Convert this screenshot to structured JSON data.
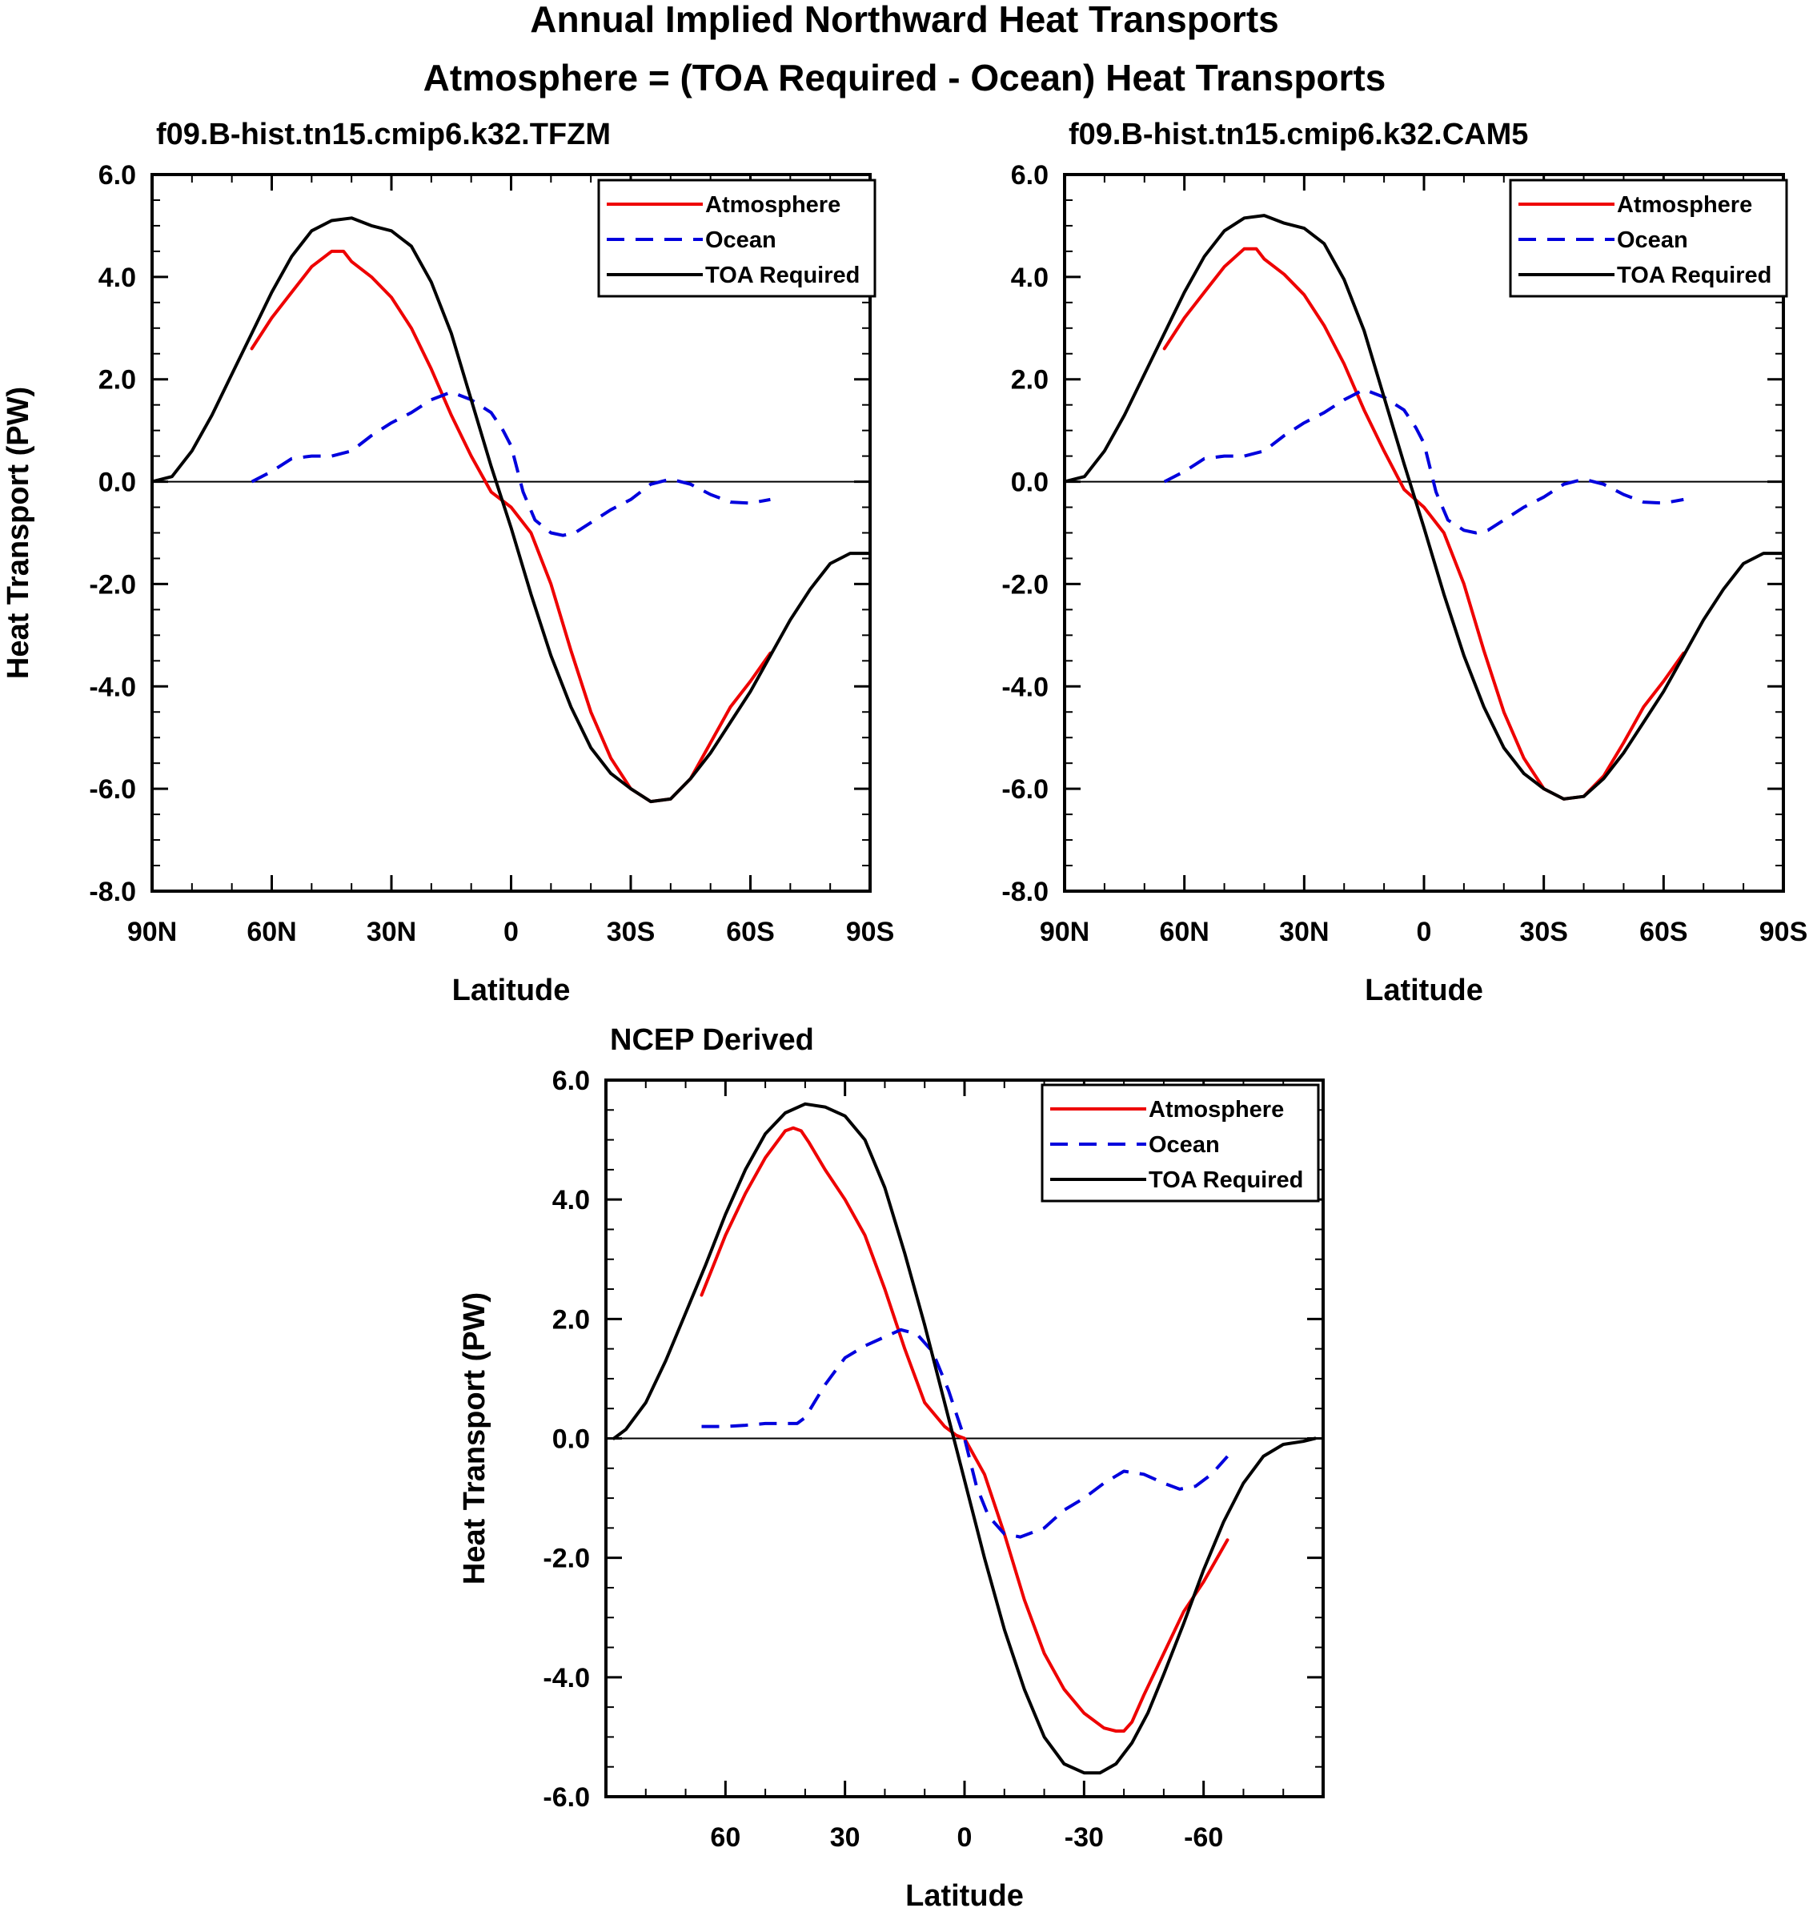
{
  "figure": {
    "title_line1": "Annual Implied Northward Heat Transports",
    "title_line2": "Atmosphere = (TOA Required - Ocean) Heat Transports"
  },
  "colors": {
    "atmosphere": "#ee0000",
    "ocean": "#0000dd",
    "toa": "#000000"
  },
  "chart_data": [
    {
      "type": "line",
      "title": "f09.B-hist.tn15.cmip6.k32.TFZM",
      "xlabel": "Latitude",
      "ylabel": "Heat Transport (PW)",
      "xlim": [
        90,
        -90
      ],
      "ylim": [
        -8,
        6
      ],
      "x_ticks": [
        90,
        60,
        30,
        0,
        -30,
        -60,
        -90
      ],
      "x_tick_labels": [
        "90N",
        "60N",
        "30N",
        "0",
        "30S",
        "60S",
        "90S"
      ],
      "y_ticks": [
        6,
        4,
        2,
        0,
        -2,
        -4,
        -6,
        -8
      ],
      "y_tick_labels": [
        "6.0",
        "4.0",
        "2.0",
        "0.0",
        "-2.0",
        "-4.0",
        "-6.0",
        "-8.0"
      ],
      "legend": {
        "position": "top-right",
        "entries": [
          "Atmosphere",
          "Ocean",
          "TOA Required"
        ]
      },
      "series": [
        {
          "name": "Atmosphere",
          "style": "solid",
          "color": "#ee0000",
          "x": [
            65,
            60,
            55,
            50,
            45,
            42,
            40,
            35,
            30,
            25,
            20,
            15,
            10,
            5,
            0,
            -5,
            -10,
            -15,
            -20,
            -25,
            -30,
            -35,
            -40,
            -45,
            -50,
            -55,
            -60,
            -65
          ],
          "y": [
            2.6,
            3.2,
            3.7,
            4.2,
            4.5,
            4.5,
            4.3,
            4.0,
            3.6,
            3.0,
            2.2,
            1.3,
            0.5,
            -0.2,
            -0.5,
            -1.0,
            -2.0,
            -3.3,
            -4.5,
            -5.4,
            -6.0,
            -6.25,
            -6.2,
            -5.8,
            -5.1,
            -4.4,
            -3.9,
            -3.35
          ]
        },
        {
          "name": "Ocean",
          "style": "dashed",
          "color": "#0000dd",
          "x": [
            65,
            60,
            55,
            50,
            45,
            40,
            35,
            30,
            25,
            20,
            15,
            10,
            5,
            2,
            0,
            -3,
            -6,
            -10,
            -13,
            -16,
            -20,
            -25,
            -30,
            -35,
            -40,
            -45,
            -50,
            -55,
            -60,
            -65
          ],
          "y": [
            0.0,
            0.2,
            0.45,
            0.5,
            0.5,
            0.6,
            0.9,
            1.15,
            1.35,
            1.6,
            1.75,
            1.6,
            1.35,
            1.0,
            0.7,
            -0.2,
            -0.75,
            -1.0,
            -1.05,
            -1.0,
            -0.8,
            -0.55,
            -0.35,
            -0.05,
            0.05,
            -0.05,
            -0.25,
            -0.4,
            -0.42,
            -0.35
          ]
        },
        {
          "name": "TOA Required",
          "style": "solid",
          "color": "#000000",
          "x": [
            90,
            85,
            80,
            75,
            70,
            65,
            60,
            55,
            50,
            45,
            40,
            35,
            30,
            25,
            20,
            15,
            10,
            5,
            0,
            -5,
            -10,
            -15,
            -20,
            -25,
            -30,
            -35,
            -40,
            -45,
            -50,
            -55,
            -60,
            -65,
            -70,
            -75,
            -80,
            -85,
            -90
          ],
          "y": [
            0.0,
            0.1,
            0.6,
            1.3,
            2.1,
            2.9,
            3.7,
            4.4,
            4.9,
            5.1,
            5.15,
            5.0,
            4.9,
            4.6,
            3.9,
            2.9,
            1.6,
            0.3,
            -0.9,
            -2.2,
            -3.4,
            -4.4,
            -5.2,
            -5.7,
            -6.0,
            -6.25,
            -6.2,
            -5.8,
            -5.3,
            -4.7,
            -4.1,
            -3.4,
            -2.7,
            -2.1,
            -1.6,
            -1.4,
            -1.4
          ]
        }
      ]
    },
    {
      "type": "line",
      "title": "f09.B-hist.tn15.cmip6.k32.CAM5",
      "xlabel": "Latitude",
      "ylabel": "",
      "xlim": [
        90,
        -90
      ],
      "ylim": [
        -8,
        6
      ],
      "x_ticks": [
        90,
        60,
        30,
        0,
        -30,
        -60,
        -90
      ],
      "x_tick_labels": [
        "90N",
        "60N",
        "30N",
        "0",
        "30S",
        "60S",
        "90S"
      ],
      "y_ticks": [
        6,
        4,
        2,
        0,
        -2,
        -4,
        -6,
        -8
      ],
      "y_tick_labels": [
        "6.0",
        "4.0",
        "2.0",
        "0.0",
        "-2.0",
        "-4.0",
        "-6.0",
        "-8.0"
      ],
      "legend": {
        "position": "top-right",
        "entries": [
          "Atmosphere",
          "Ocean",
          "TOA Required"
        ]
      },
      "series": [
        {
          "name": "Atmosphere",
          "style": "solid",
          "color": "#ee0000",
          "x": [
            65,
            60,
            55,
            50,
            45,
            42,
            40,
            35,
            30,
            25,
            20,
            15,
            10,
            5,
            0,
            -5,
            -10,
            -15,
            -20,
            -25,
            -30,
            -35,
            -40,
            -45,
            -50,
            -55,
            -60,
            -65
          ],
          "y": [
            2.6,
            3.2,
            3.7,
            4.2,
            4.55,
            4.55,
            4.35,
            4.05,
            3.65,
            3.05,
            2.3,
            1.4,
            0.6,
            -0.15,
            -0.5,
            -1.0,
            -2.0,
            -3.3,
            -4.5,
            -5.4,
            -6.0,
            -6.2,
            -6.15,
            -5.75,
            -5.1,
            -4.4,
            -3.9,
            -3.35
          ]
        },
        {
          "name": "Ocean",
          "style": "dashed",
          "color": "#0000dd",
          "x": [
            65,
            60,
            55,
            50,
            45,
            40,
            35,
            30,
            25,
            20,
            15,
            10,
            5,
            2,
            0,
            -3,
            -6,
            -10,
            -13,
            -16,
            -20,
            -25,
            -30,
            -35,
            -40,
            -45,
            -50,
            -55,
            -60,
            -65
          ],
          "y": [
            0.0,
            0.2,
            0.45,
            0.5,
            0.5,
            0.6,
            0.9,
            1.15,
            1.35,
            1.6,
            1.8,
            1.65,
            1.4,
            1.05,
            0.75,
            -0.2,
            -0.75,
            -0.95,
            -1.0,
            -0.95,
            -0.75,
            -0.5,
            -0.3,
            -0.05,
            0.05,
            -0.05,
            -0.25,
            -0.4,
            -0.42,
            -0.35
          ]
        },
        {
          "name": "TOA Required",
          "style": "solid",
          "color": "#000000",
          "x": [
            90,
            85,
            80,
            75,
            70,
            65,
            60,
            55,
            50,
            45,
            40,
            35,
            30,
            25,
            20,
            15,
            10,
            5,
            0,
            -5,
            -10,
            -15,
            -20,
            -25,
            -30,
            -35,
            -40,
            -45,
            -50,
            -55,
            -60,
            -65,
            -70,
            -75,
            -80,
            -85,
            -90
          ],
          "y": [
            0.0,
            0.1,
            0.6,
            1.3,
            2.1,
            2.9,
            3.7,
            4.4,
            4.9,
            5.15,
            5.2,
            5.05,
            4.95,
            4.65,
            3.95,
            2.95,
            1.65,
            0.35,
            -0.9,
            -2.2,
            -3.4,
            -4.4,
            -5.2,
            -5.7,
            -6.0,
            -6.2,
            -6.15,
            -5.8,
            -5.3,
            -4.7,
            -4.1,
            -3.4,
            -2.7,
            -2.1,
            -1.6,
            -1.4,
            -1.4
          ]
        }
      ]
    },
    {
      "type": "line",
      "title": "NCEP Derived",
      "xlabel": "Latitude",
      "ylabel": "Heat Transport (PW)",
      "xlim": [
        90,
        -90
      ],
      "ylim": [
        -6,
        6
      ],
      "x_ticks": [
        90,
        60,
        30,
        0,
        -30,
        -60,
        -90
      ],
      "x_tick_labels": [
        "",
        "60",
        "30",
        "0",
        "-30",
        "-60",
        ""
      ],
      "y_ticks": [
        6,
        4,
        2,
        0,
        -2,
        -4,
        -6
      ],
      "y_tick_labels": [
        "6.0",
        "4.0",
        "2.0",
        "0.0",
        "-2.0",
        "-4.0",
        "-6.0"
      ],
      "legend": {
        "position": "top-right",
        "entries": [
          "Atmosphere",
          "Ocean",
          "TOA Required"
        ]
      },
      "series": [
        {
          "name": "Atmosphere",
          "style": "solid",
          "color": "#ee0000",
          "x": [
            66,
            60,
            55,
            50,
            45,
            43,
            41,
            39,
            35,
            30,
            25,
            20,
            15,
            10,
            5,
            2,
            0,
            -5,
            -10,
            -15,
            -20,
            -25,
            -30,
            -35,
            -38,
            -40,
            -42,
            -45,
            -50,
            -55,
            -60,
            -66
          ],
          "y": [
            2.4,
            3.4,
            4.1,
            4.7,
            5.15,
            5.2,
            5.15,
            4.95,
            4.5,
            4.0,
            3.4,
            2.5,
            1.5,
            0.6,
            0.2,
            0.05,
            0.0,
            -0.6,
            -1.6,
            -2.7,
            -3.6,
            -4.2,
            -4.6,
            -4.85,
            -4.9,
            -4.9,
            -4.75,
            -4.3,
            -3.6,
            -2.9,
            -2.4,
            -1.7
          ]
        },
        {
          "name": "Ocean",
          "style": "dashed",
          "color": "#0000dd",
          "x": [
            66,
            60,
            55,
            50,
            45,
            42,
            40,
            35,
            30,
            25,
            20,
            16,
            12,
            8,
            4,
            0,
            -3,
            -6,
            -10,
            -14,
            -20,
            -25,
            -30,
            -35,
            -40,
            -45,
            -50,
            -54,
            -58,
            -62,
            -66
          ],
          "y": [
            0.2,
            0.2,
            0.22,
            0.25,
            0.25,
            0.25,
            0.35,
            0.9,
            1.35,
            1.55,
            1.7,
            1.82,
            1.75,
            1.45,
            0.8,
            0.0,
            -0.8,
            -1.3,
            -1.6,
            -1.65,
            -1.5,
            -1.2,
            -1.0,
            -0.75,
            -0.55,
            -0.6,
            -0.75,
            -0.85,
            -0.8,
            -0.6,
            -0.3
          ]
        },
        {
          "name": "TOA Required",
          "style": "solid",
          "color": "#000000",
          "x": [
            88,
            85,
            80,
            75,
            70,
            65,
            60,
            55,
            50,
            45,
            40,
            35,
            30,
            25,
            20,
            15,
            10,
            5,
            0,
            -5,
            -10,
            -15,
            -20,
            -25,
            -30,
            -34,
            -38,
            -42,
            -46,
            -50,
            -55,
            -60,
            -65,
            -70,
            -75,
            -80,
            -85,
            -88
          ],
          "y": [
            0.0,
            0.15,
            0.6,
            1.3,
            2.1,
            2.9,
            3.75,
            4.5,
            5.1,
            5.45,
            5.6,
            5.55,
            5.4,
            5.0,
            4.2,
            3.1,
            1.9,
            0.6,
            -0.7,
            -2.0,
            -3.2,
            -4.2,
            -5.0,
            -5.45,
            -5.6,
            -5.6,
            -5.45,
            -5.1,
            -4.6,
            -3.95,
            -3.1,
            -2.2,
            -1.4,
            -0.75,
            -0.3,
            -0.1,
            -0.05,
            0.0
          ]
        }
      ]
    }
  ]
}
